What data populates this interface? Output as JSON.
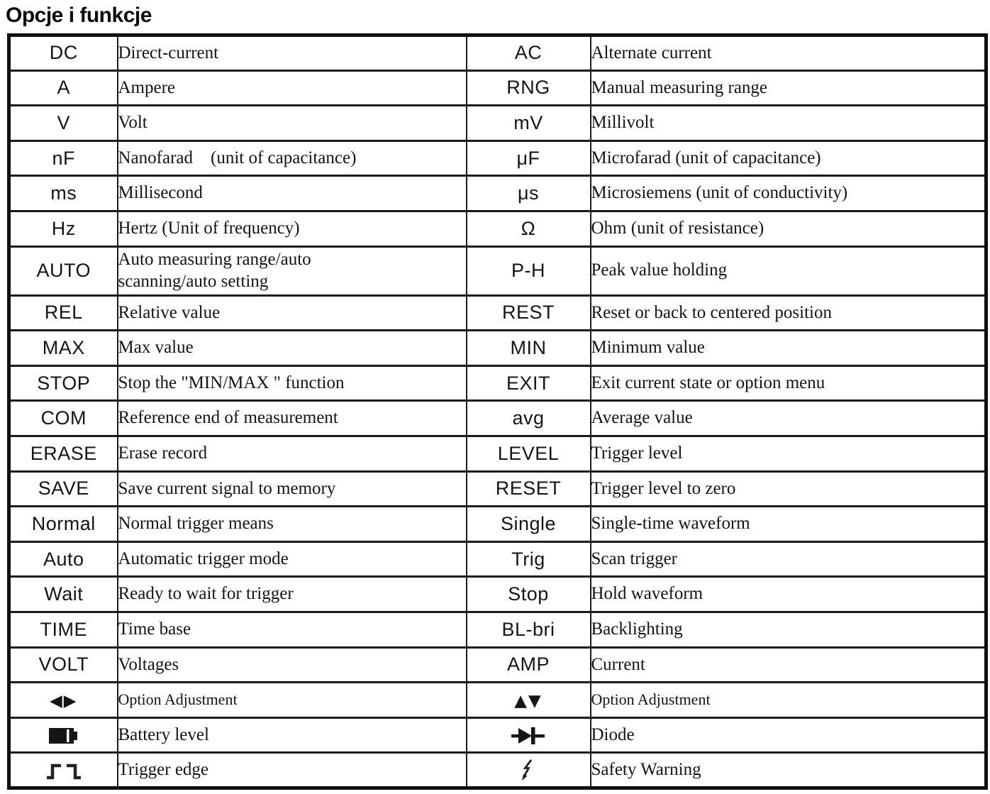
{
  "title": "Opcje i funkcje",
  "colors": {
    "text": "#141414",
    "border": "#1b1b1b",
    "background": "#ffffff"
  },
  "table": {
    "rows": [
      {
        "left": {
          "symbol": "DC",
          "desc": "Direct-current"
        },
        "right": {
          "symbol": "AC",
          "desc": "Alternate current"
        }
      },
      {
        "left": {
          "symbol": "A",
          "desc": "Ampere"
        },
        "right": {
          "symbol": "RNG",
          "desc": "Manual measuring range"
        }
      },
      {
        "left": {
          "symbol": "V",
          "desc": "Volt"
        },
        "right": {
          "symbol": "mV",
          "desc": "Millivolt"
        }
      },
      {
        "left": {
          "symbol": "nF",
          "desc": "Nanofarad    (unit of capacitance)"
        },
        "right": {
          "symbol": "μF",
          "desc": "Microfarad (unit of capacitance)"
        }
      },
      {
        "left": {
          "symbol": "ms",
          "desc": "Millisecond"
        },
        "right": {
          "symbol": "μs",
          "desc": "Microsiemens (unit of conductivity)"
        }
      },
      {
        "left": {
          "symbol": "Hz",
          "desc": "Hertz (Unit of frequency)"
        },
        "right": {
          "symbol": "Ω",
          "desc": "Ohm (unit of resistance)"
        }
      },
      {
        "left": {
          "symbol": "AUTO",
          "desc": "Auto measuring range/auto\nscanning/auto setting"
        },
        "right": {
          "symbol": "P-H",
          "desc": "Peak value holding"
        }
      },
      {
        "left": {
          "symbol": "REL",
          "desc": "Relative value"
        },
        "right": {
          "symbol": "REST",
          "desc": "Reset or back to centered position"
        }
      },
      {
        "left": {
          "symbol": "MAX",
          "desc": "Max value"
        },
        "right": {
          "symbol": "MIN",
          "desc": "Minimum value"
        }
      },
      {
        "left": {
          "symbol": "STOP",
          "desc": "Stop the \"MIN/MAX \" function"
        },
        "right": {
          "symbol": "EXIT",
          "desc": "Exit current state or option menu"
        }
      },
      {
        "left": {
          "symbol": "COM",
          "desc": "Reference end of measurement"
        },
        "right": {
          "symbol": "avg",
          "desc": "Average value"
        }
      },
      {
        "left": {
          "symbol": "ERASE",
          "desc": "Erase record"
        },
        "right": {
          "symbol": "LEVEL",
          "desc": "Trigger level"
        }
      },
      {
        "left": {
          "symbol": "SAVE",
          "desc": "Save current signal to memory"
        },
        "right": {
          "symbol": "RESET",
          "desc": "Trigger level to zero"
        }
      },
      {
        "left": {
          "symbol": "Normal",
          "desc": "Normal trigger means"
        },
        "right": {
          "symbol": "Single",
          "desc": "Single-time waveform"
        }
      },
      {
        "left": {
          "symbol": "Auto",
          "desc": "Automatic trigger mode"
        },
        "right": {
          "symbol": "Trig",
          "desc": "Scan trigger"
        }
      },
      {
        "left": {
          "symbol": "Wait",
          "desc": "Ready to wait for trigger"
        },
        "right": {
          "symbol": "Stop",
          "desc": "Hold waveform"
        }
      },
      {
        "left": {
          "symbol": "TIME",
          "desc": "Time base"
        },
        "right": {
          "symbol": "BL-bri",
          "desc": "Backlighting"
        }
      },
      {
        "left": {
          "symbol": "VOLT",
          "desc": "Voltages"
        },
        "right": {
          "symbol": "AMP",
          "desc": "Current"
        }
      },
      {
        "left": {
          "symbol": "◀▶",
          "icon": "left-right-triangles-icon",
          "desc": "Option Adjustment",
          "desc_small": true
        },
        "right": {
          "symbol": "▲▼",
          "icon": "up-down-triangles-icon",
          "desc": "Option Adjustment",
          "desc_small": true
        }
      },
      {
        "left": {
          "icon": "battery-icon",
          "desc": "Battery level"
        },
        "right": {
          "icon": "diode-icon",
          "desc": "Diode"
        }
      },
      {
        "left": {
          "icon": "trigger-edge-icon",
          "desc": "Trigger edge"
        },
        "right": {
          "icon": "safety-warning-icon",
          "desc": "Safety Warning"
        }
      }
    ]
  }
}
